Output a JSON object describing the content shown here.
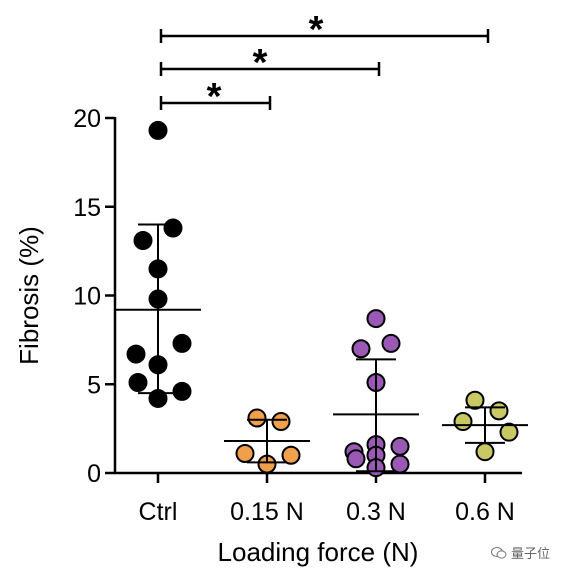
{
  "chart_data": {
    "type": "scatter",
    "title": "",
    "xlabel": "Loading force (N)",
    "ylabel": "Fibrosis (%)",
    "ylim": [
      0,
      20
    ],
    "yticks": [
      0,
      5,
      10,
      15,
      20
    ],
    "categories": [
      "Ctrl",
      "0.15 N",
      "0.3 N",
      "0.6 N"
    ],
    "series": [
      {
        "category": "Ctrl",
        "color": "#000000",
        "points": [
          19.3,
          13.8,
          13.1,
          11.5,
          9.8,
          7.3,
          6.7,
          6.1,
          5.1,
          4.6,
          4.2
        ],
        "mean": 9.2,
        "sd_upper": 14.0,
        "sd_lower": 4.5
      },
      {
        "category": "0.15 N",
        "color": "#f0a04b",
        "points": [
          3.1,
          2.9,
          1.1,
          1.0,
          0.5
        ],
        "mean": 1.8,
        "sd_upper": 3.0,
        "sd_lower": 0.6
      },
      {
        "category": "0.3 N",
        "color": "#9b59b6",
        "points": [
          8.7,
          7.3,
          7.0,
          5.1,
          1.6,
          1.5,
          1.2,
          1.0,
          0.8,
          0.5,
          0.3
        ],
        "mean": 3.3,
        "sd_upper": 6.4,
        "sd_lower": 0.1
      },
      {
        "category": "0.6 N",
        "color": "#c8c864",
        "points": [
          4.1,
          3.5,
          2.9,
          2.3,
          1.2
        ],
        "mean": 2.7,
        "sd_upper": 3.7,
        "sd_lower": 1.7
      }
    ],
    "significance": [
      {
        "from": "Ctrl",
        "to": "0.15 N",
        "label": "*"
      },
      {
        "from": "Ctrl",
        "to": "0.3 N",
        "label": "*"
      },
      {
        "from": "Ctrl",
        "to": "0.6 N",
        "label": "*"
      }
    ],
    "grid": false,
    "legend": "none"
  },
  "watermark": {
    "text": "量子位",
    "icon": "wechat-icon"
  }
}
